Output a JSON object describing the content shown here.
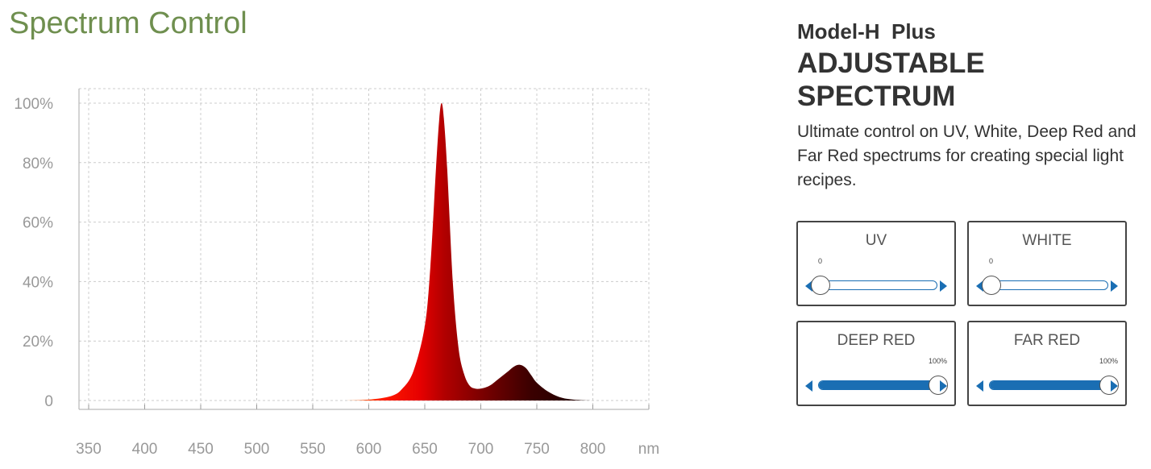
{
  "page": {
    "title": "Spectrum Control"
  },
  "product": {
    "model": "Model-H  Plus",
    "headline": "ADJUSTABLE SPECTRUM",
    "description": "Ultimate control on UV, White, Deep Red and Far Red spectrums for creating special light recipes."
  },
  "controls": [
    {
      "label": "UV",
      "value_text": "0",
      "value": 0
    },
    {
      "label": "WHITE",
      "value_text": "0",
      "value": 0
    },
    {
      "label": "DEEP RED",
      "value_text": "100%",
      "value": 100
    },
    {
      "label": "FAR RED",
      "value_text": "100%",
      "value": 100
    }
  ],
  "colors": {
    "title": "#6f8f4f",
    "slider": "#1a6eb3",
    "spectrum_peak": "#e60000",
    "spectrum_dark": "#3a0000"
  },
  "chart_data": {
    "type": "area",
    "xlabel": "nm",
    "ylabel": "",
    "xlim": [
      350,
      850
    ],
    "ylim": [
      0,
      100
    ],
    "x_ticks": [
      350,
      400,
      450,
      500,
      550,
      600,
      650,
      700,
      750,
      800
    ],
    "x_tick_labels": [
      "350",
      "400",
      "450",
      "500",
      "550",
      "600",
      "650",
      "700",
      "750",
      "800"
    ],
    "y_ticks": [
      0,
      20,
      40,
      60,
      80,
      100
    ],
    "y_tick_labels": [
      "0",
      "20%",
      "40%",
      "60%",
      "80%",
      "100%"
    ],
    "grid": true,
    "series": [
      {
        "x": [
          580,
          600,
          620,
          630,
          640,
          650,
          655,
          660,
          663,
          665,
          667,
          670,
          675,
          680,
          685,
          690,
          695,
          700,
          705,
          710,
          715,
          720,
          725,
          730,
          735,
          740,
          745,
          750,
          760,
          770,
          780,
          790,
          800
        ],
        "values": [
          0,
          0.3,
          1.5,
          4,
          10,
          25,
          45,
          78,
          95,
          100,
          95,
          78,
          40,
          18,
          9,
          5,
          4,
          4,
          4.5,
          5.5,
          7,
          8.5,
          10,
          11.5,
          12,
          11,
          8.5,
          6,
          3,
          1.2,
          0.4,
          0.1,
          0
        ]
      }
    ]
  }
}
